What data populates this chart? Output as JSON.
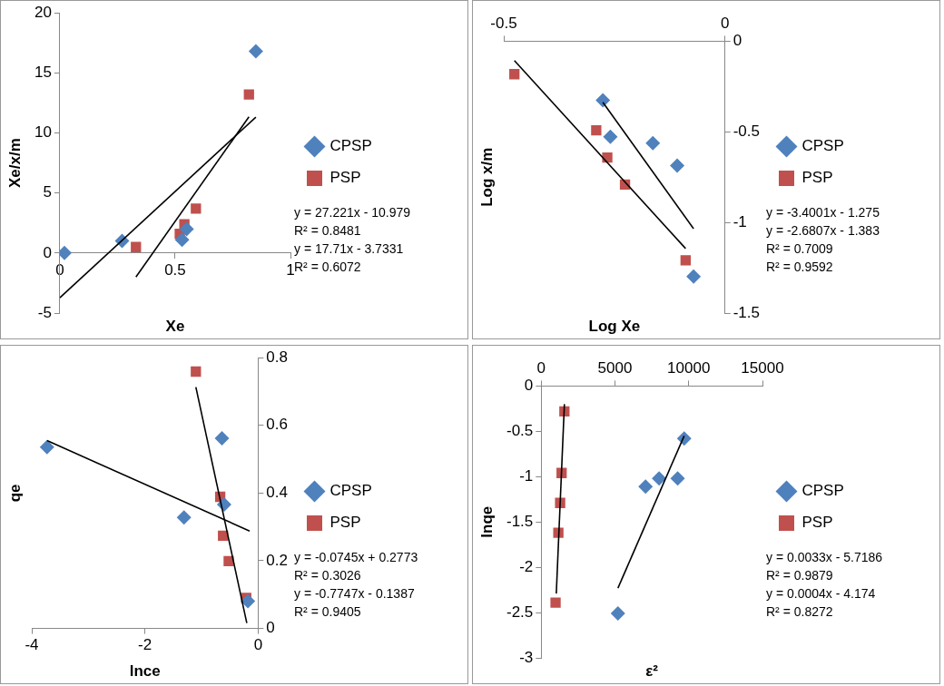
{
  "chart_data": [
    {
      "type": "scatter",
      "xlabel": "Xe",
      "ylabel": "Xe/x/m",
      "xlim": [
        0,
        1
      ],
      "xticks": [
        0,
        0.5,
        1
      ],
      "ylim": [
        -5,
        20
      ],
      "yticks": [
        -5,
        0,
        5,
        10,
        15,
        20
      ],
      "grid": false,
      "legend": "right",
      "annotations": [
        "y = 27.221x - 10.979",
        "R² = 0.8481",
        "y = 17.71x - 3.7331",
        "R² = 0.6072"
      ],
      "series": [
        {
          "name": "CPSP",
          "color": "#4f81bd",
          "marker": "diamond",
          "x": [
            0.02,
            0.27,
            0.53,
            0.55,
            0.85
          ],
          "values": [
            0,
            1.0,
            1.1,
            2.0,
            16.8
          ]
        },
        {
          "name": "PSP",
          "color": "#c0504d",
          "marker": "square",
          "x": [
            0.33,
            0.52,
            0.54,
            0.59,
            0.82
          ],
          "values": [
            0.5,
            1.6,
            2.4,
            3.7,
            13.2
          ]
        },
        {
          "type": "line",
          "color": "#000000",
          "marker": "none",
          "x": [
            0,
            0.85
          ],
          "values": [
            -3.73,
            11.32
          ]
        },
        {
          "type": "line",
          "color": "#000000",
          "marker": "none",
          "x": [
            0.33,
            0.82
          ],
          "values": [
            -1.99,
            11.34
          ]
        }
      ]
    },
    {
      "type": "scatter",
      "xlabel": "Log Xe",
      "ylabel": "Log x/m",
      "xlim": [
        -0.5,
        0
      ],
      "xticks": [
        -0.5,
        0
      ],
      "ylim": [
        -1.5,
        0
      ],
      "yticks": [
        -1.5,
        -1,
        -0.5,
        0
      ],
      "grid": false,
      "legend": "right",
      "annotations": [
        "y = -3.4001x - 1.275",
        "y = -2.6807x - 1.383",
        "R² = 0.7009",
        "R² = 0.9592"
      ],
      "series": [
        {
          "name": "CPSP",
          "color": "#4f81bd",
          "marker": "diamond",
          "x": [
            -0.276,
            -0.259,
            -0.163,
            -0.108,
            -0.071
          ],
          "values": [
            -0.326,
            -0.528,
            -0.563,
            -0.686,
            -1.298
          ]
        },
        {
          "name": "PSP",
          "color": "#c0504d",
          "marker": "square",
          "x": [
            -0.476,
            -0.291,
            -0.266,
            -0.226,
            -0.089
          ],
          "values": [
            -0.182,
            -0.492,
            -0.642,
            -0.791,
            -1.209
          ]
        },
        {
          "type": "line",
          "color": "#000000",
          "marker": "none",
          "x": [
            -0.276,
            -0.071
          ],
          "values": [
            -0.337,
            -1.034
          ]
        },
        {
          "type": "line",
          "color": "#000000",
          "marker": "none",
          "x": [
            -0.476,
            -0.089
          ],
          "values": [
            -0.107,
            -1.144
          ]
        }
      ]
    },
    {
      "type": "scatter",
      "xlabel": "lnce",
      "ylabel": "qe",
      "xlim": [
        -4,
        0
      ],
      "xticks": [
        -4,
        -2,
        0
      ],
      "ylim": [
        0,
        0.8
      ],
      "yticks": [
        0,
        0.2,
        0.4,
        0.6,
        0.8
      ],
      "grid": false,
      "legend": "right",
      "annotations": [
        "y = -0.0745x + 0.2773",
        "R² = 0.3026",
        "y = -0.7747x - 0.1387",
        "R² = 0.9405"
      ],
      "series": [
        {
          "name": "CPSP",
          "color": "#4f81bd",
          "marker": "diamond",
          "x": [
            -3.73,
            -1.31,
            -0.64,
            -0.6,
            -0.18
          ],
          "values": [
            0.536,
            0.328,
            0.562,
            0.366,
            0.081
          ]
        },
        {
          "name": "PSP",
          "color": "#c0504d",
          "marker": "square",
          "x": [
            -1.1,
            -0.67,
            -0.62,
            -0.52,
            -0.21
          ],
          "values": [
            0.759,
            0.389,
            0.274,
            0.199,
            0.09
          ]
        },
        {
          "type": "line",
          "color": "#000000",
          "marker": "none",
          "x": [
            -3.73,
            -0.15
          ],
          "values": [
            0.555,
            0.288
          ]
        },
        {
          "type": "line",
          "color": "#000000",
          "marker": "none",
          "x": [
            -1.1,
            -0.2
          ],
          "values": [
            0.713,
            0.016
          ]
        }
      ]
    },
    {
      "type": "scatter",
      "xlabel": "ε²",
      "ylabel": "lnqe",
      "xlim": [
        0,
        15000
      ],
      "xticks": [
        0,
        5000,
        10000,
        15000
      ],
      "ylim": [
        -3,
        0
      ],
      "yticks": [
        -3,
        -2.5,
        -2,
        -1.5,
        -1,
        -0.5,
        0
      ],
      "grid": false,
      "legend": "right",
      "annotations": [
        "y = 0.0033x - 5.7186",
        "R² = 0.9879",
        "y = 0.0004x - 4.174",
        "R² = 0.8272"
      ],
      "series": [
        {
          "name": "CPSP",
          "color": "#4f81bd",
          "marker": "diamond",
          "x": [
            5200,
            7070,
            7990,
            9250,
            9690
          ],
          "values": [
            -2.51,
            -1.11,
            -1.02,
            -1.02,
            -0.58
          ]
        },
        {
          "name": "PSP",
          "color": "#c0504d",
          "marker": "square",
          "x": [
            1570,
            1380,
            1280,
            1160,
            970
          ],
          "values": [
            -0.28,
            -0.96,
            -1.29,
            -1.62,
            -2.39
          ]
        },
        {
          "type": "line",
          "color": "#000000",
          "marker": "none",
          "x": [
            5200,
            9690
          ],
          "values": [
            -2.23,
            -0.55
          ]
        },
        {
          "type": "line",
          "color": "#000000",
          "marker": "none",
          "x": [
            1020,
            1570
          ],
          "values": [
            -2.29,
            -0.2
          ]
        }
      ]
    }
  ]
}
